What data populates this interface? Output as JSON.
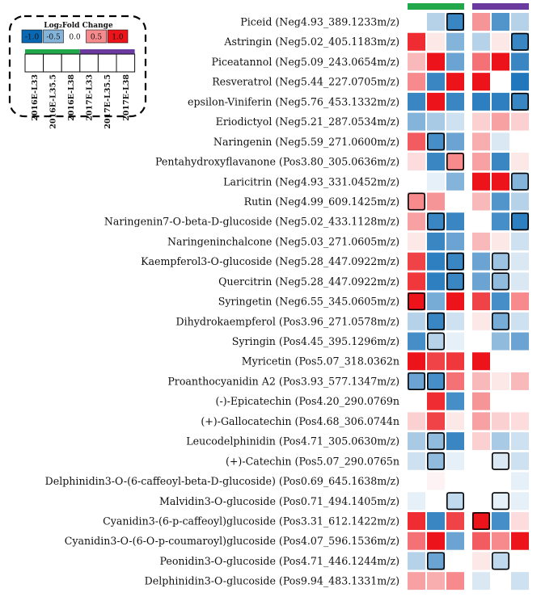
{
  "chart_data": {
    "type": "heatmap",
    "legend": {
      "title": "Log₂Fold Change",
      "scale": [
        -1.0,
        -0.5,
        0.0,
        0.5,
        1.0
      ],
      "scale_labels": [
        "-1.0",
        "-0.5",
        "0.0",
        "0.5",
        "1.0"
      ],
      "placement": "top-left"
    },
    "groups": [
      {
        "color": "#22A84A",
        "columns": [
          0,
          1,
          2
        ]
      },
      {
        "color": "#6B3A9E",
        "columns": [
          3,
          4,
          5
        ]
      }
    ],
    "columns": [
      "2016E-L33",
      "2016E-L35.5",
      "2016E-L38",
      "2017E-L33",
      "2017E-L35.5",
      "2017E-L38"
    ],
    "rows": [
      "Piceid (Neg4.93_389.1233m/z)",
      "Astringin (Neg5.02_405.1183m/z)",
      "Piceatannol (Neg5.09_243.0654m/z)",
      "Resveratrol (Neg5.44_227.0705m/z)",
      "epsilon-Viniferin (Neg5.76_453.1332m/z)",
      "Eriodictyol (Neg5.21_287.0534m/z)",
      "Naringenin (Neg5.59_271.0600m/z)",
      "Pentahydroxyflavanone (Pos3.80_305.0636m/z)",
      "Laricitrin (Neg4.93_331.0452m/z)",
      "Rutin (Neg4.99_609.1425m/z)",
      "Naringenin7-O-beta-D-glucoside (Neg5.02_433.1128m/z)",
      "Naringeninchalcone (Neg5.03_271.0605m/z)",
      "Kaempferol3-O-glucoside (Neg5.28_447.0922m/z)",
      "Quercitrin (Neg5.28_447.0922m/z)",
      "Syringetin (Neg6.55_345.0605m/z)",
      "Dihydrokaempferol (Pos3.96_271.0578m/z)",
      "Syringin (Pos4.45_395.1296m/z)",
      "Myricetin (Pos5.07_318.0362n",
      "Proanthocyanidin A2 (Pos3.93_577.1347m/z)",
      "(-)-Epicatechin (Pos4.20_290.0769n",
      "(+)-Gallocatechin (Pos4.68_306.0744n",
      "Leucodelphinidin (Pos4.71_305.0630m/z)",
      "(+)-Catechin (Pos5.07_290.0765n",
      "Delphinidin3-O-(6-caffeoyl-beta-D-glucoside) (Pos0.69_645.1638m/z)",
      "Malvidin3-O-glucoside (Pos0.71_494.1405m/z)",
      "Cyanidin3-(6-p-caffeoyl)glucoside (Pos3.31_612.1422m/z)",
      "Cyanidin3-O-(6-O-p-coumaroyl)glucoside (Pos4.07_596.1536m/z)",
      "Peonidin3-O-glucoside (Pos4.71_446.1244m/z)",
      "Delphinidin3-O-glucoside (Pos9.94_483.1331m/z)"
    ],
    "values": [
      [
        0.0,
        -0.3,
        -0.8,
        0.45,
        -0.7,
        -0.3
      ],
      [
        0.9,
        0.1,
        -0.5,
        -0.3,
        0.1,
        -0.8
      ],
      [
        0.3,
        1.0,
        -0.6,
        0.6,
        1.0,
        -0.8
      ],
      [
        0.5,
        -0.8,
        1.0,
        1.0,
        0.0,
        -0.9
      ],
      [
        -0.8,
        1.0,
        -0.8,
        -0.85,
        -0.85,
        -0.8
      ],
      [
        -0.5,
        -0.35,
        -0.2,
        0.2,
        0.4,
        0.2
      ],
      [
        0.7,
        -0.75,
        -0.6,
        0.35,
        -0.15,
        0.0
      ],
      [
        0.15,
        -0.8,
        0.5,
        0.4,
        -0.8,
        0.1
      ],
      [
        0.0,
        -0.1,
        -0.5,
        1.0,
        1.0,
        -0.5
      ],
      [
        0.5,
        0.45,
        0.0,
        0.3,
        -0.7,
        -0.3
      ],
      [
        0.4,
        -0.8,
        -0.8,
        0.0,
        -0.75,
        -0.85
      ],
      [
        0.1,
        -0.8,
        -0.6,
        0.3,
        0.1,
        -0.2
      ],
      [
        0.8,
        -0.85,
        -0.8,
        -0.6,
        -0.4,
        -0.15
      ],
      [
        0.85,
        -0.85,
        -0.8,
        -0.6,
        -0.45,
        -0.15
      ],
      [
        1.0,
        -0.55,
        1.0,
        0.8,
        -0.75,
        0.5
      ],
      [
        -0.3,
        -0.8,
        -0.2,
        0.1,
        -0.55,
        -0.2
      ],
      [
        -0.75,
        -0.3,
        -0.1,
        0.0,
        -0.45,
        -0.6
      ],
      [
        1.0,
        0.8,
        0.85,
        1.0,
        0.0,
        0.0
      ],
      [
        -0.6,
        -0.75,
        0.6,
        0.3,
        0.1,
        0.3
      ],
      [
        0.0,
        0.9,
        -0.75,
        0.45,
        0.0,
        0.0
      ],
      [
        0.2,
        0.8,
        0.1,
        0.4,
        0.2,
        0.15
      ],
      [
        -0.35,
        -0.45,
        -0.8,
        0.2,
        -0.35,
        -0.2
      ],
      [
        -0.2,
        -0.45,
        -0.1,
        0.0,
        -0.15,
        -0.2
      ],
      [
        0.0,
        0.05,
        0.0,
        0.0,
        0.0,
        -0.1
      ],
      [
        -0.1,
        0.0,
        -0.25,
        0.0,
        -0.1,
        -0.1
      ],
      [
        0.9,
        -0.8,
        0.8,
        1.0,
        -0.75,
        0.15
      ],
      [
        0.6,
        1.0,
        -0.6,
        0.7,
        0.5,
        1.0
      ],
      [
        -0.3,
        -0.6,
        0.0,
        0.1,
        -0.25,
        0.0
      ],
      [
        0.4,
        0.35,
        0.5,
        -0.15,
        0.0,
        -0.2
      ]
    ],
    "outlined": [
      [
        0,
        2
      ],
      [
        1,
        5
      ],
      [
        4,
        5
      ],
      [
        6,
        1
      ],
      [
        7,
        2
      ],
      [
        8,
        5
      ],
      [
        9,
        0
      ],
      [
        10,
        1
      ],
      [
        10,
        5
      ],
      [
        12,
        2
      ],
      [
        12,
        4
      ],
      [
        13,
        2
      ],
      [
        13,
        4
      ],
      [
        14,
        0
      ],
      [
        15,
        1
      ],
      [
        15,
        4
      ],
      [
        16,
        1
      ],
      [
        18,
        0
      ],
      [
        18,
        1
      ],
      [
        21,
        1
      ],
      [
        22,
        1
      ],
      [
        22,
        4
      ],
      [
        24,
        2
      ],
      [
        24,
        4
      ],
      [
        25,
        3
      ],
      [
        27,
        1
      ],
      [
        27,
        4
      ]
    ],
    "title": "",
    "xlabel": "",
    "ylabel": ""
  }
}
